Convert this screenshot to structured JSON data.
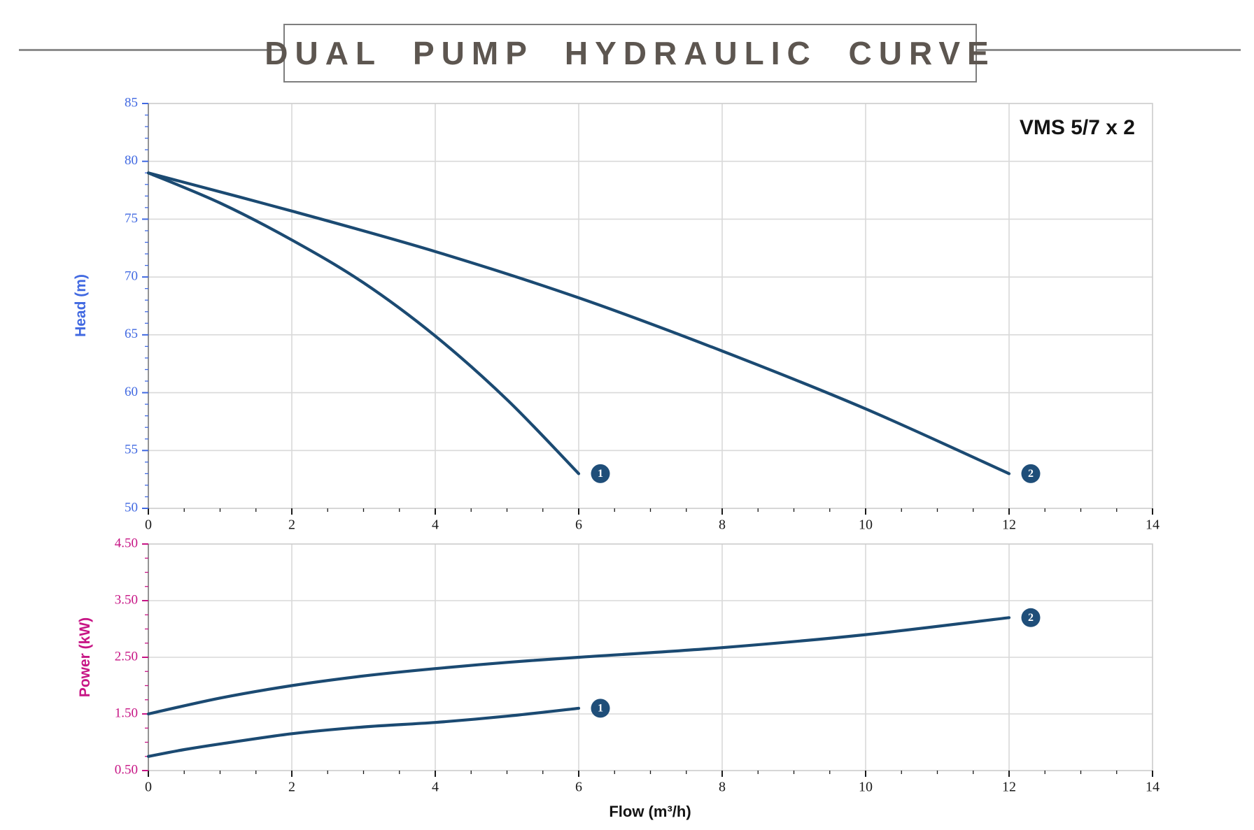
{
  "header": {
    "title": "DUAL PUMP HYDRAULIC CURVE",
    "model": "VMS 5/7 x 2"
  },
  "colors": {
    "curve": "#1B4A72",
    "badge_fill": "#1F4E79",
    "badge_text": "#FFFFFF",
    "head_axis": "#4169E1",
    "power_axis": "#C71585",
    "x_axis_text": "#1A1A1A",
    "grid": "#D9D9D9",
    "plot_border": "#CCCCCC",
    "left_axis_line": "#808080",
    "title_text": "#5D5650",
    "rule": "#8C8C8C"
  },
  "chart_data": [
    {
      "type": "line",
      "title": "",
      "xlabel": "",
      "ylabel": "Head (m)",
      "xlim": [
        0,
        14
      ],
      "ylim": [
        50,
        85
      ],
      "grid": true,
      "legend": "none",
      "axis_color": "#4169E1",
      "xticks": [
        0,
        2,
        4,
        6,
        8,
        10,
        12,
        14
      ],
      "xtick_labels": [
        "0",
        "2",
        "4",
        "6",
        "8",
        "10",
        "12",
        "14"
      ],
      "x_minor_step": 0.5,
      "yticks": [
        85,
        80,
        75,
        70,
        65,
        60,
        55,
        50
      ],
      "ytick_labels": [
        "85",
        "80",
        "75",
        "70",
        "65",
        "60",
        "55",
        "50"
      ],
      "y_minor_step": 1,
      "series": [
        {
          "name": "1",
          "marker_label": "1",
          "points": [
            [
              0,
              79
            ],
            [
              1,
              76.4
            ],
            [
              2,
              73.2
            ],
            [
              3,
              69.5
            ],
            [
              4,
              64.9
            ],
            [
              5,
              59.4
            ],
            [
              6,
              53
            ]
          ]
        },
        {
          "name": "2",
          "marker_label": "2",
          "points": [
            [
              0,
              79
            ],
            [
              2,
              75.7
            ],
            [
              4,
              72.2
            ],
            [
              6,
              68.2
            ],
            [
              8,
              63.6
            ],
            [
              10,
              58.6
            ],
            [
              12,
              53
            ]
          ]
        }
      ]
    },
    {
      "type": "line",
      "title": "",
      "xlabel": "Flow (m³/h)",
      "ylabel": "Power (kW)",
      "xlim": [
        0,
        14
      ],
      "ylim": [
        0.5,
        4.5
      ],
      "grid": true,
      "legend": "none",
      "axis_color": "#C71585",
      "xticks": [
        0,
        2,
        4,
        6,
        8,
        10,
        12,
        14
      ],
      "xtick_labels": [
        "0",
        "2",
        "4",
        "6",
        "8",
        "10",
        "12",
        "14"
      ],
      "x_minor_step": 0.5,
      "yticks": [
        4.5,
        3.5,
        2.5,
        1.5,
        0.5
      ],
      "ytick_labels": [
        "4.50",
        "3.50",
        "2.50",
        "1.50",
        "0.50"
      ],
      "y_minor_step": 0.25,
      "series": [
        {
          "name": "1",
          "marker_label": "1",
          "points": [
            [
              0,
              0.75
            ],
            [
              0.5,
              0.87
            ],
            [
              1,
              0.97
            ],
            [
              2,
              1.15
            ],
            [
              3,
              1.27
            ],
            [
              4,
              1.35
            ],
            [
              5,
              1.46
            ],
            [
              6,
              1.6
            ]
          ]
        },
        {
          "name": "2",
          "marker_label": "2",
          "points": [
            [
              0,
              1.5
            ],
            [
              1,
              1.78
            ],
            [
              2,
              2.0
            ],
            [
              3,
              2.17
            ],
            [
              4,
              2.3
            ],
            [
              5,
              2.41
            ],
            [
              6,
              2.5
            ],
            [
              8,
              2.67
            ],
            [
              10,
              2.9
            ],
            [
              12,
              3.2
            ]
          ]
        }
      ]
    }
  ]
}
